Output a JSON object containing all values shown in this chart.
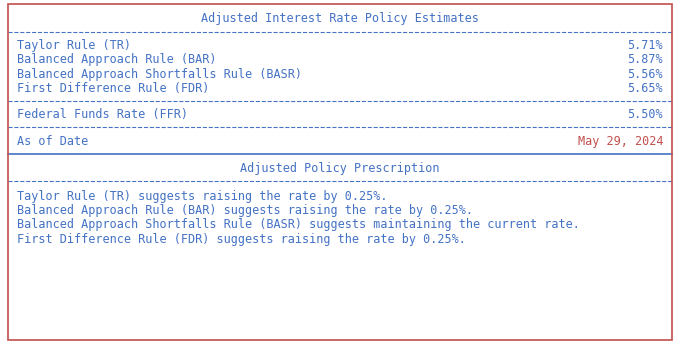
{
  "title1": "Adjusted Interest Rate Policy Estimates",
  "title2": "Adjusted Policy Prescription",
  "rules": [
    {
      "label": "Taylor Rule (TR)",
      "value": "5.71%"
    },
    {
      "label": "Balanced Approach Rule (BAR)",
      "value": "5.87%"
    },
    {
      "label": "Balanced Approach Shortfalls Rule (BASR)",
      "value": "5.56%"
    },
    {
      "label": "First Difference Rule (FDR)",
      "value": "5.65%"
    }
  ],
  "ffr": {
    "label": "Federal Funds Rate (FFR)",
    "value": "5.50%"
  },
  "date": {
    "label": "As of Date",
    "value": "May 29, 2024"
  },
  "prescriptions": [
    "Taylor Rule (TR) suggests raising the rate by 0.25%.",
    "Balanced Approach Rule (BAR) suggests raising the rate by 0.25%.",
    "Balanced Approach Shortfalls Rule (BASR) suggests maintaining the current rate.",
    "First Difference Rule (FDR) suggests raising the rate by 0.25%."
  ],
  "text_color": "#4472c4",
  "date_value_color": "#c0504d",
  "outer_border_color": "#c0504d",
  "inner_line_color": "#4472c4",
  "mid_border_color": "#4472c4",
  "background_color": "#ffffff",
  "font_size": 8.5
}
